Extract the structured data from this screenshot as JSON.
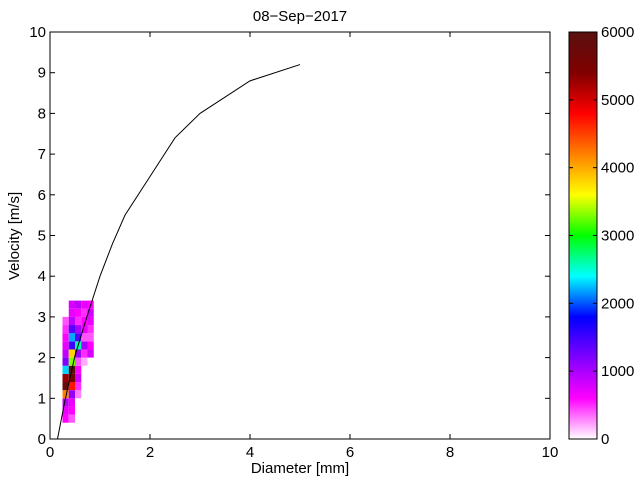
{
  "chart_data": {
    "type": "heatmap",
    "title": "08−Sep−2017",
    "xlabel": "Diameter [mm]",
    "ylabel": "Velocity [m/s]",
    "xlim": [
      0,
      10
    ],
    "ylim": [
      0,
      10
    ],
    "x_ticks": [
      "0",
      "2",
      "4",
      "6",
      "8",
      "10"
    ],
    "y_ticks": [
      "0",
      "1",
      "2",
      "3",
      "4",
      "5",
      "6",
      "7",
      "8",
      "9",
      "10"
    ],
    "grid": false,
    "colorbar": {
      "range": [
        0,
        6000
      ],
      "ticks": [
        "0",
        "1000",
        "2000",
        "3000",
        "4000",
        "5000",
        "6000"
      ],
      "colormap": [
        "#ffffff",
        "#ff00ff",
        "#8000ff",
        "#0000ff",
        "#00ffff",
        "#00ff00",
        "#ffff00",
        "#ff8000",
        "#ff0000",
        "#800000",
        "#5a1010"
      ]
    },
    "cell_width_mm": 0.125,
    "cell_height_ms": 0.2,
    "cells": [
      {
        "d": 0.3125,
        "v": 0.5,
        "c": 600
      },
      {
        "d": 0.4375,
        "v": 0.5,
        "c": 400
      },
      {
        "d": 0.3125,
        "v": 0.7,
        "c": 700
      },
      {
        "d": 0.4375,
        "v": 0.7,
        "c": 600
      },
      {
        "d": 0.3125,
        "v": 0.9,
        "c": 900
      },
      {
        "d": 0.4375,
        "v": 0.9,
        "c": 700
      },
      {
        "d": 0.3125,
        "v": 1.1,
        "c": 4200
      },
      {
        "d": 0.4375,
        "v": 1.1,
        "c": 1100
      },
      {
        "d": 0.5625,
        "v": 1.1,
        "c": 300
      },
      {
        "d": 0.3125,
        "v": 1.3,
        "c": 5800
      },
      {
        "d": 0.4375,
        "v": 1.3,
        "c": 4700
      },
      {
        "d": 0.5625,
        "v": 1.3,
        "c": 500
      },
      {
        "d": 0.3125,
        "v": 1.5,
        "c": 5300
      },
      {
        "d": 0.4375,
        "v": 1.5,
        "c": 5600
      },
      {
        "d": 0.5625,
        "v": 1.5,
        "c": 800
      },
      {
        "d": 0.3125,
        "v": 1.7,
        "c": 2300
      },
      {
        "d": 0.4375,
        "v": 1.7,
        "c": 6000
      },
      {
        "d": 0.5625,
        "v": 1.7,
        "c": 600
      },
      {
        "d": 0.3125,
        "v": 1.9,
        "c": 1200
      },
      {
        "d": 0.4375,
        "v": 1.9,
        "c": 3300
      },
      {
        "d": 0.5625,
        "v": 1.9,
        "c": 400
      },
      {
        "d": 0.6875,
        "v": 1.9,
        "c": 200
      },
      {
        "d": 0.3125,
        "v": 2.1,
        "c": 900
      },
      {
        "d": 0.4375,
        "v": 2.1,
        "c": 3800
      },
      {
        "d": 0.5625,
        "v": 2.1,
        "c": 1100
      },
      {
        "d": 0.6875,
        "v": 2.1,
        "c": 500
      },
      {
        "d": 0.8125,
        "v": 2.1,
        "c": 800
      },
      {
        "d": 0.3125,
        "v": 2.3,
        "c": 700
      },
      {
        "d": 0.4375,
        "v": 2.3,
        "c": 1500
      },
      {
        "d": 0.5625,
        "v": 2.3,
        "c": 2600
      },
      {
        "d": 0.6875,
        "v": 2.3,
        "c": 1000
      },
      {
        "d": 0.8125,
        "v": 2.3,
        "c": 600
      },
      {
        "d": 0.3125,
        "v": 2.5,
        "c": 600
      },
      {
        "d": 0.4375,
        "v": 2.5,
        "c": 2200
      },
      {
        "d": 0.5625,
        "v": 2.5,
        "c": 1400
      },
      {
        "d": 0.6875,
        "v": 2.5,
        "c": 400
      },
      {
        "d": 0.8125,
        "v": 2.5,
        "c": 400
      },
      {
        "d": 0.3125,
        "v": 2.7,
        "c": 500
      },
      {
        "d": 0.4375,
        "v": 2.7,
        "c": 1400
      },
      {
        "d": 0.5625,
        "v": 2.7,
        "c": 1000
      },
      {
        "d": 0.6875,
        "v": 2.7,
        "c": 700
      },
      {
        "d": 0.8125,
        "v": 2.7,
        "c": 500
      },
      {
        "d": 0.3125,
        "v": 2.9,
        "c": 400
      },
      {
        "d": 0.4375,
        "v": 2.9,
        "c": 900
      },
      {
        "d": 0.5625,
        "v": 2.9,
        "c": 500
      },
      {
        "d": 0.6875,
        "v": 2.9,
        "c": 600
      },
      {
        "d": 0.8125,
        "v": 2.9,
        "c": 700
      },
      {
        "d": 0.4375,
        "v": 3.1,
        "c": 700
      },
      {
        "d": 0.5625,
        "v": 3.1,
        "c": 600
      },
      {
        "d": 0.6875,
        "v": 3.1,
        "c": 500
      },
      {
        "d": 0.8125,
        "v": 3.1,
        "c": 800
      },
      {
        "d": 0.4375,
        "v": 3.3,
        "c": 800
      },
      {
        "d": 0.5625,
        "v": 3.3,
        "c": 900
      },
      {
        "d": 0.6875,
        "v": 3.3,
        "c": 700
      },
      {
        "d": 0.8125,
        "v": 3.3,
        "c": 600
      }
    ],
    "series": [
      {
        "type": "line",
        "color": "#000000",
        "x": [
          0.15,
          0.3,
          0.5,
          0.75,
          1.0,
          1.25,
          1.5,
          2.0,
          2.5,
          3.0,
          4.0,
          5.0
        ],
        "y": [
          0.0,
          0.95,
          2.05,
          3.05,
          4.0,
          4.8,
          5.5,
          6.45,
          7.4,
          8.0,
          8.8,
          9.2
        ]
      }
    ]
  }
}
